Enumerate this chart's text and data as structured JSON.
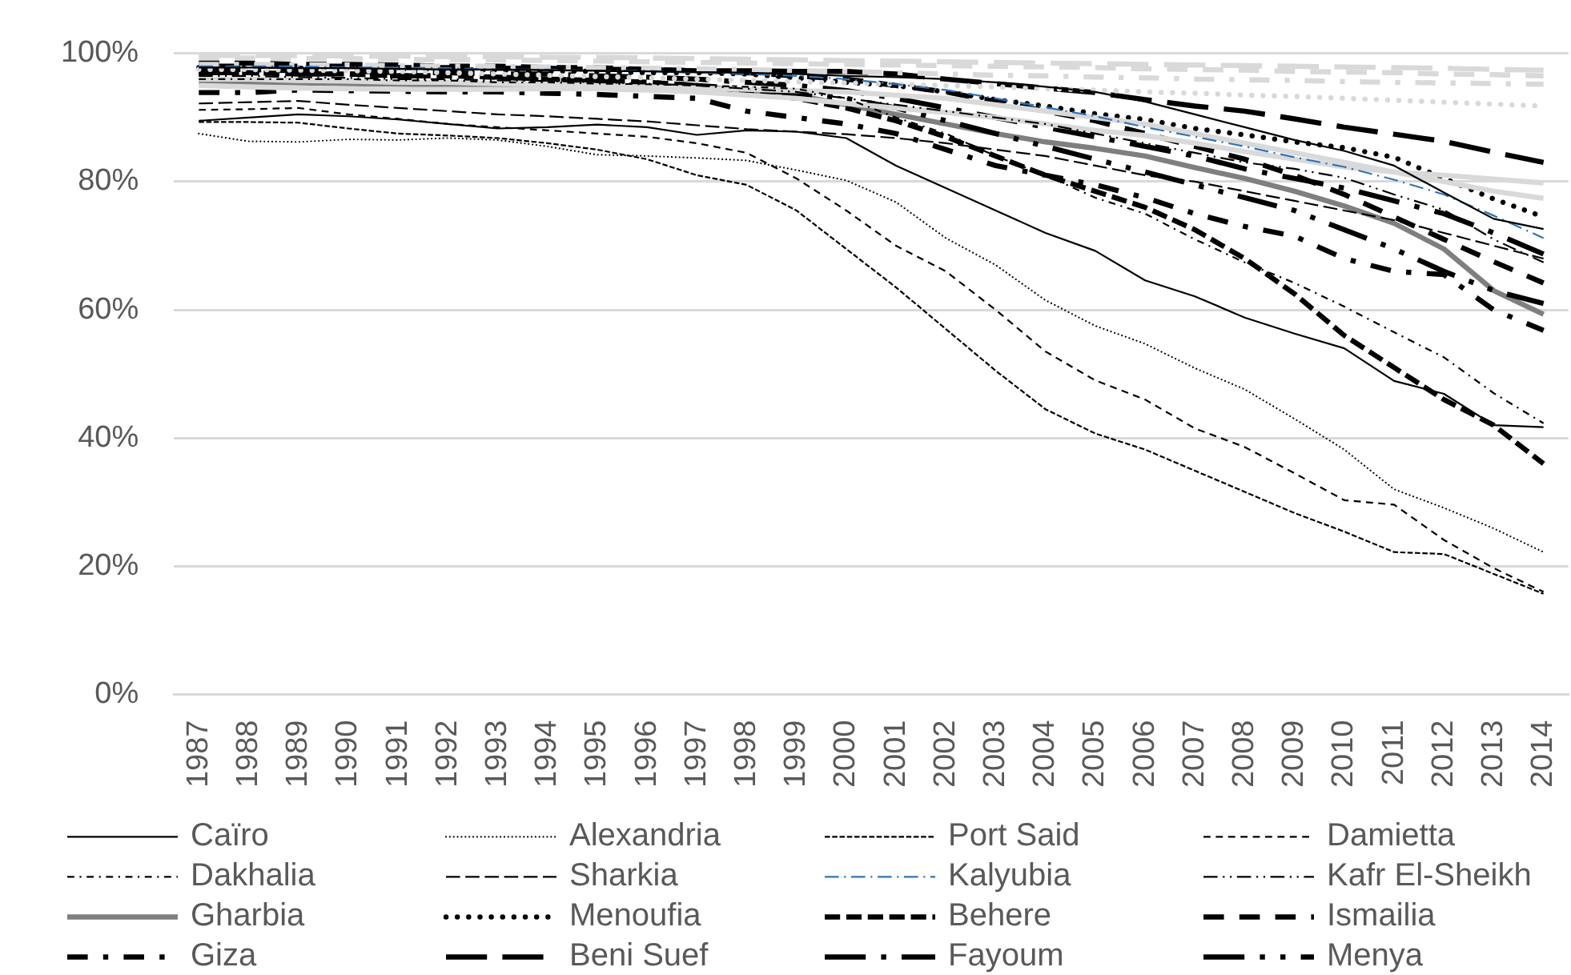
{
  "chart_data": {
    "type": "line",
    "categories": [
      "1987",
      "1988",
      "1989",
      "1990",
      "1991",
      "1992",
      "1993",
      "1994",
      "1995",
      "1996",
      "1997",
      "1998",
      "1999",
      "2000",
      "2001",
      "2002",
      "2003",
      "2004",
      "2005",
      "2006",
      "2007",
      "2008",
      "2009",
      "2010",
      "2011",
      "2012",
      "2013",
      "2014"
    ],
    "series": [
      {
        "name": "Caïro",
        "color": "#000000",
        "line_style": "solid",
        "values": [
          89.5,
          90,
          90.5,
          90.2,
          89.7,
          89,
          88.3,
          88.5,
          88.9,
          88.5,
          87.3,
          88,
          87.8,
          86.8,
          82.5,
          79,
          75.5,
          72,
          69.2,
          64.6,
          62.1,
          58.8,
          56.3,
          54,
          48.9,
          46.9,
          42,
          41.7
        ]
      },
      {
        "name": "Alexandria",
        "color": "#000000",
        "line_style": "round-dot",
        "values": [
          87.5,
          86.3,
          86.2,
          86.6,
          86.5,
          86.8,
          86.5,
          85.5,
          84.2,
          84,
          83.7,
          83.3,
          81.8,
          80.2,
          76.8,
          71.2,
          67,
          61.5,
          57.5,
          54.7,
          50.9,
          47.6,
          43,
          38.2,
          32,
          29.1,
          25.9,
          22.2
        ]
      },
      {
        "name": "Port Said",
        "color": "#000000",
        "line_style": "short-dash",
        "values": [
          89.3,
          89.3,
          89.2,
          88.3,
          87.5,
          87.2,
          86.8,
          86,
          85,
          83.5,
          81,
          79.5,
          75.5,
          69.5,
          63.5,
          57,
          50.5,
          44.5,
          40.7,
          38.2,
          34.9,
          31.6,
          28.3,
          25.4,
          22.2,
          21.9,
          18.8,
          15.7
        ]
      },
      {
        "name": "Damietta",
        "color": "#000000",
        "line_style": "dash",
        "values": [
          91.2,
          91.3,
          91.5,
          90.5,
          89.8,
          89,
          88.5,
          88,
          87.5,
          87,
          86,
          84.5,
          80.5,
          75.5,
          70,
          66,
          60,
          53.5,
          49,
          46,
          41.5,
          38.6,
          34.5,
          30.3,
          29.6,
          24.1,
          19.7,
          16
        ]
      },
      {
        "name": "Dakhalia",
        "color": "#000000",
        "line_style": "dash-dot",
        "values": [
          96,
          96,
          96,
          96,
          95.8,
          95.8,
          95.5,
          95.5,
          95.3,
          95.2,
          95,
          94.8,
          94.5,
          93,
          90,
          87.5,
          84,
          81,
          77.5,
          75,
          71,
          67.4,
          64.2,
          60.5,
          56.5,
          52.6,
          47,
          42.3
        ]
      },
      {
        "name": "Sharkia",
        "color": "#000000",
        "line_style": "long-dash",
        "values": [
          92.2,
          92.4,
          92.6,
          92,
          91.5,
          91,
          90.5,
          90.2,
          89.8,
          89.4,
          88.8,
          88.2,
          87.8,
          87.4,
          86.8,
          86,
          85,
          84,
          82.5,
          81,
          80,
          78.5,
          77,
          75.5,
          74,
          72,
          70,
          68
        ]
      },
      {
        "name": "Kalyubia",
        "color": "#2e75b6",
        "line_style": "long-dash-dot",
        "values": [
          98,
          98,
          98,
          97.8,
          97.8,
          97.7,
          97.5,
          97.5,
          97.3,
          97.3,
          97,
          96.8,
          96.5,
          96,
          95.2,
          94.3,
          93,
          91.6,
          90.2,
          88.5,
          87,
          85.5,
          83.8,
          82.3,
          80.3,
          78,
          74.7,
          71.2
        ]
      },
      {
        "name": "Kafr El-Sheikh",
        "color": "#000000",
        "line_style": "long-dash-dot-dot",
        "values": [
          96.5,
          96.5,
          96.3,
          96.2,
          96,
          96,
          95.8,
          95.7,
          95.5,
          95.3,
          95,
          94.5,
          94,
          93,
          92,
          91,
          90,
          89,
          87.5,
          86,
          84.5,
          83,
          82,
          80.6,
          78,
          75.6,
          71,
          67.4
        ]
      },
      {
        "name": "Gharbia",
        "color": "#7f7f7f",
        "line_style": "solid",
        "values": [
          95.5,
          95.5,
          95.4,
          95.3,
          95.2,
          95,
          95,
          94.8,
          94.8,
          94.6,
          94.4,
          94,
          93.5,
          92,
          90.5,
          89,
          87.5,
          86.2,
          85.2,
          84,
          82.2,
          80.5,
          78.5,
          76.2,
          73.5,
          69.5,
          63,
          59.3
        ]
      },
      {
        "name": "Menoufia",
        "color": "#000000",
        "line_style": "heavy round-dot",
        "values": [
          97.8,
          97.8,
          97.7,
          97.7,
          97.5,
          97.5,
          97.4,
          97.3,
          97.2,
          97,
          97,
          96.8,
          96.2,
          95.5,
          95,
          94,
          92.8,
          91.8,
          90.6,
          89.7,
          88.3,
          87.3,
          86.2,
          85.3,
          83.8,
          80.5,
          77.3,
          74.5
        ]
      },
      {
        "name": "Behere",
        "color": "#000000",
        "line_style": "heavy short-dash",
        "values": [
          97,
          97,
          96.8,
          96.8,
          96.5,
          96.5,
          96.3,
          96,
          95.8,
          95.5,
          95,
          94,
          93,
          91.5,
          89.5,
          87,
          84,
          81,
          78.5,
          76,
          72.5,
          68,
          62.5,
          56,
          51,
          46,
          42,
          36
        ]
      },
      {
        "name": "Ismailia",
        "color": "#000000",
        "line_style": "heavy dash",
        "values": [
          98.5,
          98.5,
          98.3,
          98.3,
          98.2,
          98,
          98,
          97.8,
          97.8,
          97.5,
          97.3,
          97,
          96.5,
          96,
          95,
          94,
          92.5,
          91,
          89.5,
          87.5,
          85.5,
          83.5,
          81,
          78,
          74.5,
          71,
          67.5,
          64.2
        ]
      },
      {
        "name": "Giza",
        "color": "#000000",
        "line_style": "heavy dash-dot",
        "values": [
          93.9,
          93.9,
          94.3,
          94.2,
          94.1,
          94,
          94,
          93.8,
          93.6,
          93.3,
          93,
          91,
          90,
          89,
          87.5,
          85,
          82.5,
          81,
          79.5,
          77.5,
          75,
          73,
          71.5,
          68,
          66,
          65.5,
          60,
          56.8
        ]
      },
      {
        "name": "Beni Suef",
        "color": "#000000",
        "line_style": "heavy long-dash",
        "values": [
          98,
          98,
          98,
          98,
          97.8,
          97.8,
          97.7,
          97.7,
          97.5,
          97.5,
          97.3,
          97.3,
          97.2,
          97.2,
          96.8,
          96,
          95.3,
          94.6,
          93.9,
          92.8,
          91.8,
          91,
          89.8,
          88.5,
          87.4,
          86.3,
          84.6,
          83
        ]
      },
      {
        "name": "Fayoum",
        "color": "#000000",
        "line_style": "heavy long-dash-dot",
        "values": [
          97.5,
          97.5,
          97.3,
          97.3,
          97,
          97,
          96.8,
          96.8,
          96.5,
          96.3,
          96,
          95.5,
          95,
          94.2,
          93,
          91.5,
          90,
          88.5,
          87,
          85.5,
          84,
          82,
          80.5,
          79,
          77,
          75,
          72,
          68.7
        ]
      },
      {
        "name": "Menya",
        "color": "#000000",
        "line_style": "heavy long-dash-dot-dot",
        "values": [
          97,
          97,
          96.8,
          96.8,
          96.5,
          96.5,
          96.3,
          96,
          95.8,
          95.5,
          95,
          94.5,
          93.8,
          93,
          91.5,
          89.5,
          87.5,
          85.5,
          83.5,
          81.5,
          79.5,
          77.5,
          75.5,
          72.5,
          69.5,
          66,
          63,
          61
        ]
      },
      {
        "color": "#d9d9d9",
        "line_style": "heavy round-dot",
        "values": [
          97.5,
          97.5,
          97.4,
          97.3,
          97.2,
          97,
          96.8,
          96.6,
          96.4,
          96.2,
          96,
          95.8,
          95.6,
          95.4,
          95.2,
          95,
          94.8,
          94.5,
          94.3,
          94,
          93.8,
          93.5,
          93.3,
          93,
          92.7,
          92.4,
          92.1,
          91.8
        ]
      },
      {
        "color": "#d9d9d9",
        "line_style": "heavy dash",
        "values": [
          99.3,
          99.3,
          99.2,
          99.2,
          99.1,
          99,
          99,
          98.9,
          98.8,
          98.7,
          98.6,
          98.5,
          98.4,
          98.3,
          98.2,
          98.1,
          98,
          97.9,
          97.8,
          97.6,
          97.5,
          97.4,
          97.2,
          97.1,
          97,
          96.8,
          96.7,
          96.5
        ]
      },
      {
        "color": "#d9d9d9",
        "line_style": "heavy long-dash",
        "values": [
          99.7,
          99.7,
          99.7,
          99.6,
          99.6,
          99.5,
          99.5,
          99.4,
          99.4,
          99.3,
          99.2,
          99.1,
          99,
          98.9,
          98.8,
          98.7,
          98.6,
          98.5,
          98.4,
          98.3,
          98.2,
          98.1,
          98,
          97.9,
          97.8,
          97.7,
          97.5,
          97.4
        ]
      },
      {
        "color": "#d9d9d9",
        "line_style": "heavy dash-dot",
        "values": [
          98.3,
          98.3,
          98.2,
          98.2,
          98.1,
          98,
          98,
          97.9,
          97.8,
          97.7,
          97.6,
          97.5,
          97.3,
          97.2,
          97,
          96.8,
          96.6,
          96.5,
          96.3,
          96.2,
          96,
          95.9,
          95.8,
          95.6,
          95.5,
          95.4,
          95.3,
          95.2
        ]
      },
      {
        "color": "#d9d9d9",
        "line_style": "solid",
        "values": [
          95,
          94.8,
          94.6,
          94.5,
          94.4,
          94.4,
          94.4,
          94.5,
          94.5,
          94.3,
          94,
          93.5,
          93,
          92.2,
          91.5,
          90.8,
          90,
          89,
          88,
          87.2,
          86,
          84.7,
          83.5,
          82.3,
          81.5,
          81,
          80.4,
          79.8
        ]
      },
      {
        "color": "#d9d9d9",
        "line_style": "solid",
        "values": [
          96,
          96,
          95.8,
          95.7,
          95.5,
          95.5,
          95.3,
          95.2,
          95,
          94.8,
          94.6,
          94.4,
          94.2,
          94,
          93.5,
          93,
          92,
          91,
          90,
          89,
          87.5,
          86,
          84.5,
          83,
          81.5,
          80,
          78.5,
          77.4
        ]
      },
      {
        "color": "#000000",
        "line_style": "solid",
        "values": [
          97.8,
          97.8,
          97.7,
          97.7,
          97.6,
          97.5,
          97.5,
          97.4,
          97.3,
          97.2,
          97.1,
          97,
          96.8,
          96.5,
          96.3,
          96,
          95.5,
          94.8,
          94,
          92.5,
          90.5,
          88.5,
          86.5,
          84.8,
          82.5,
          78.3,
          74.2,
          72.6
        ]
      }
    ],
    "ylim": [
      0,
      100
    ],
    "yticks": [
      {
        "value": 0,
        "label": "0%"
      },
      {
        "value": 20,
        "label": "20%"
      },
      {
        "value": 40,
        "label": "40%"
      },
      {
        "value": 60,
        "label": "60%"
      },
      {
        "value": 80,
        "label": "80%"
      },
      {
        "value": 100,
        "label": "100%"
      }
    ],
    "grid": "y",
    "legend": "bottom",
    "marker": "none"
  }
}
